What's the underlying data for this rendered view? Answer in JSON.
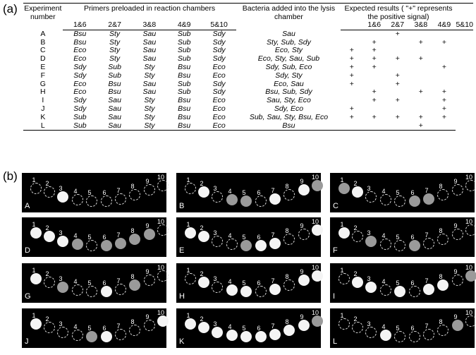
{
  "labels": {
    "a": "(a)",
    "b": "(b)"
  },
  "table": {
    "hdr_experiment": "Experiment number",
    "hdr_primers": "Primers preloaded in reaction chambers",
    "hdr_bacteria": "Bacteria added into the lysis chamber",
    "hdr_expected": "Expected results ( \"+\" represents the positive signal)",
    "chambers": [
      "1&6",
      "2&7",
      "3&8",
      "4&9",
      "5&10"
    ],
    "rows": [
      {
        "exp": "A",
        "p": [
          "Bsu",
          "Sty",
          "Sau",
          "Sub",
          "Sdy"
        ],
        "bact": "Sau",
        "r": [
          "",
          "",
          "+",
          "",
          ""
        ]
      },
      {
        "exp": "B",
        "p": [
          "Bsu",
          "Sty",
          "Sau",
          "Sub",
          "Sdy"
        ],
        "bact": "Sty, Sub, Sdy",
        "r": [
          "",
          "+",
          "",
          "+",
          "+"
        ]
      },
      {
        "exp": "C",
        "p": [
          "Eco",
          "Sty",
          "Sau",
          "Sub",
          "Sdy"
        ],
        "bact": "Eco, Sty",
        "r": [
          "+",
          "+",
          "",
          "",
          ""
        ]
      },
      {
        "exp": "D",
        "p": [
          "Eco",
          "Sty",
          "Sau",
          "Sub",
          "Sdy"
        ],
        "bact": "Eco, Sty, Sau, Sub",
        "r": [
          "+",
          "+",
          "+",
          "+",
          ""
        ]
      },
      {
        "exp": "E",
        "p": [
          "Sdy",
          "Sub",
          "Sty",
          "Bsu",
          "Eco"
        ],
        "bact": "Sdy, Sub, Eco",
        "r": [
          "+",
          "+",
          "",
          "",
          "+"
        ]
      },
      {
        "exp": "F",
        "p": [
          "Sdy",
          "Sub",
          "Sty",
          "Bsu",
          "Eco"
        ],
        "bact": "Sdy, Sty",
        "r": [
          "+",
          "",
          "+",
          "",
          ""
        ]
      },
      {
        "exp": "G",
        "p": [
          "Eco",
          "Bsu",
          "Sau",
          "Sub",
          "Sdy"
        ],
        "bact": "Eco, Sau",
        "r": [
          "+",
          "",
          "+",
          "",
          ""
        ]
      },
      {
        "exp": "H",
        "p": [
          "Eco",
          "Bsu",
          "Sau",
          "Sub",
          "Sdy"
        ],
        "bact": "Bsu, Sub, Sdy",
        "r": [
          "",
          "+",
          "",
          "+",
          "+"
        ]
      },
      {
        "exp": "I",
        "p": [
          "Sdy",
          "Sau",
          "Sty",
          "Bsu",
          "Eco"
        ],
        "bact": "Sau, Sty, Eco",
        "r": [
          "",
          "+",
          "+",
          "",
          "+"
        ]
      },
      {
        "exp": "J",
        "p": [
          "Sdy",
          "Sau",
          "Sty",
          "Bsu",
          "Eco"
        ],
        "bact": "Sdy, Eco",
        "r": [
          "+",
          "",
          "",
          "",
          "+"
        ]
      },
      {
        "exp": "K",
        "p": [
          "Sub",
          "Sau",
          "Sty",
          "Bsu",
          "Eco"
        ],
        "bact": "Sub, Sau, Sty, Bsu, Eco",
        "r": [
          "+",
          "+",
          "+",
          "+",
          "+"
        ]
      },
      {
        "exp": "L",
        "p": [
          "Sub",
          "Sau",
          "Sty",
          "Bsu",
          "Eco"
        ],
        "bact": "Bsu",
        "r": [
          "",
          "",
          "",
          "+",
          ""
        ]
      }
    ]
  },
  "panels": [
    {
      "letter": "A",
      "pos": [
        3
      ],
      "dim": []
    },
    {
      "letter": "B",
      "pos": [
        2,
        4,
        5,
        7,
        9,
        10
      ],
      "dim": [
        4,
        5,
        10
      ]
    },
    {
      "letter": "C",
      "pos": [
        1,
        2,
        6,
        7
      ],
      "dim": [
        1,
        6,
        7
      ]
    },
    {
      "letter": "D",
      "pos": [
        1,
        2,
        3,
        4,
        6,
        7,
        8,
        9
      ],
      "dim": [
        4,
        6,
        7,
        8,
        9
      ]
    },
    {
      "letter": "E",
      "pos": [
        1,
        2,
        5,
        6,
        7,
        10
      ],
      "dim": [
        5
      ]
    },
    {
      "letter": "F",
      "pos": [
        1,
        3,
        6
      ],
      "dim": [
        3,
        6
      ]
    },
    {
      "letter": "G",
      "pos": [
        1,
        3,
        6,
        8
      ],
      "dim": [
        3,
        8
      ]
    },
    {
      "letter": "H",
      "pos": [
        2,
        4,
        5,
        7,
        9,
        10
      ],
      "dim": []
    },
    {
      "letter": "I",
      "pos": [
        2,
        3,
        5,
        7,
        8,
        10
      ],
      "dim": [
        10
      ]
    },
    {
      "letter": "J",
      "pos": [
        1,
        5,
        6,
        10
      ],
      "dim": [
        5
      ]
    },
    {
      "letter": "K",
      "pos": [
        1,
        2,
        3,
        4,
        5,
        6,
        7,
        8,
        9,
        10
      ],
      "dim": [
        10
      ]
    },
    {
      "letter": "L",
      "pos": [
        4,
        9
      ],
      "dim": [
        9
      ]
    }
  ],
  "channel_labels": [
    "1",
    "2",
    "3",
    "4",
    "5",
    "6",
    "7",
    "8",
    "9",
    "10"
  ]
}
